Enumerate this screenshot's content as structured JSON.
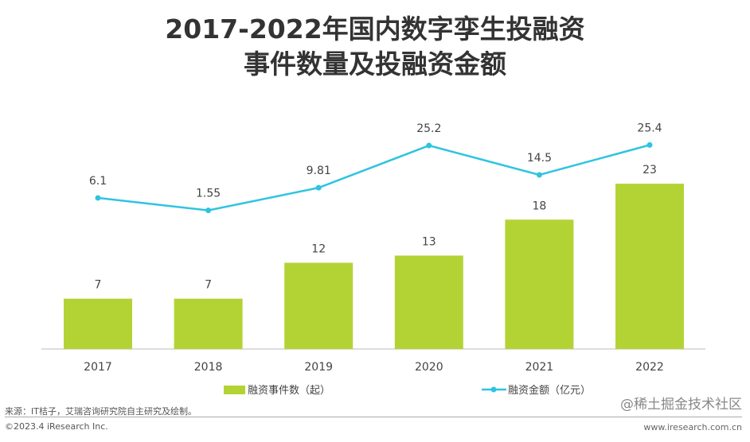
{
  "chart_data": {
    "type": "bar+line",
    "title_line1": "2017-2022年国内数字孪生投融资",
    "title_line2": "事件数量及投融资金额",
    "categories": [
      "2017",
      "2018",
      "2019",
      "2020",
      "2021",
      "2022"
    ],
    "series": [
      {
        "name": "融资事件数（起）",
        "type": "bar",
        "color": "#b3d335",
        "values": [
          7,
          7,
          12,
          13,
          18,
          23
        ]
      },
      {
        "name": "融资金额（亿元）",
        "type": "line",
        "color": "#2ec4e0",
        "values": [
          6.1,
          1.55,
          9.81,
          25.2,
          14.5,
          25.4
        ]
      }
    ],
    "legend": "bottom",
    "grid": false
  },
  "footer": {
    "source": "来源：IT桔子，艾瑞咨询研究院自主研究及绘制。",
    "copyright": "©2023.4 iResearch Inc.",
    "url": "www.iresearch.com.cn",
    "watermark": "@稀土掘金技术社区"
  }
}
